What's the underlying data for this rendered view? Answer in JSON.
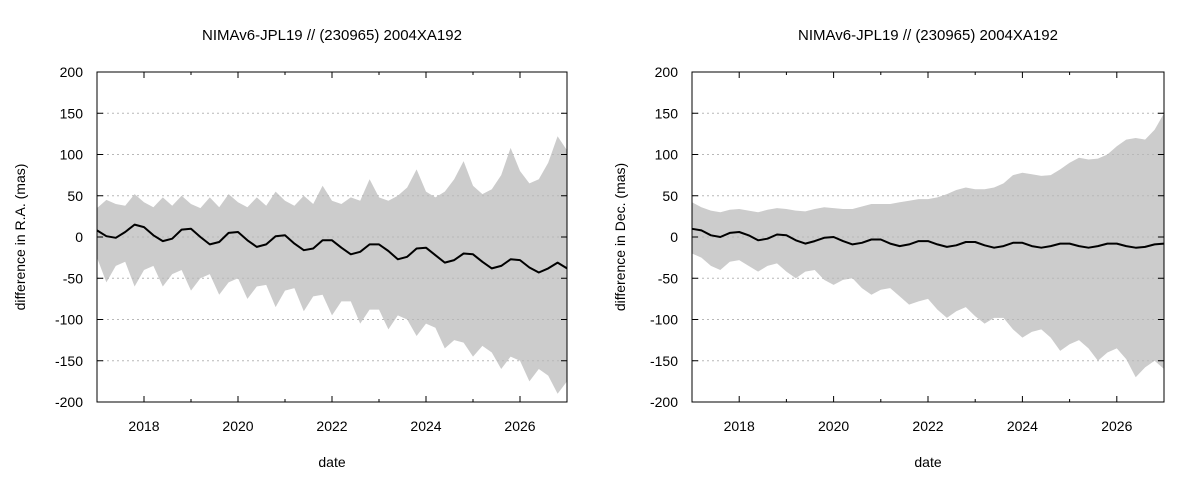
{
  "chart_data": [
    {
      "type": "line",
      "title": "NIMAv6-JPL19 // (230965) 2004XA192",
      "xlabel": "date",
      "ylabel": "difference in R.A. (mas)",
      "xlim": [
        2017.0,
        2027.0
      ],
      "ylim": [
        -200,
        200
      ],
      "xticks": [
        2018,
        2020,
        2022,
        2024,
        2026
      ],
      "yticks": [
        -200,
        -150,
        -100,
        -50,
        0,
        50,
        100,
        150,
        200
      ],
      "grid": "horizontal-dotted",
      "series": [
        {
          "name": "difference",
          "color": "#000000",
          "x": [
            2017.0,
            2017.2,
            2017.4,
            2017.6,
            2017.8,
            2018.0,
            2018.2,
            2018.4,
            2018.6,
            2018.8,
            2019.0,
            2019.2,
            2019.4,
            2019.6,
            2019.8,
            2020.0,
            2020.2,
            2020.4,
            2020.6,
            2020.8,
            2021.0,
            2021.2,
            2021.4,
            2021.6,
            2021.8,
            2022.0,
            2022.2,
            2022.4,
            2022.6,
            2022.8,
            2023.0,
            2023.2,
            2023.4,
            2023.6,
            2023.8,
            2024.0,
            2024.2,
            2024.4,
            2024.6,
            2024.8,
            2025.0,
            2025.2,
            2025.4,
            2025.6,
            2025.8,
            2026.0,
            2026.2,
            2026.4,
            2026.6,
            2026.8,
            2027.0
          ],
          "y": [
            8,
            1,
            -1,
            6,
            15,
            12,
            2,
            -5,
            -2,
            9,
            10,
            0,
            -9,
            -6,
            5,
            6,
            -4,
            -12,
            -9,
            1,
            2,
            -8,
            -16,
            -14,
            -4,
            -4,
            -13,
            -21,
            -18,
            -9,
            -9,
            -17,
            -27,
            -24,
            -14,
            -13,
            -22,
            -31,
            -28,
            -20,
            -21,
            -30,
            -38,
            -35,
            -27,
            -28,
            -37,
            -43,
            -38,
            -31,
            -38
          ]
        },
        {
          "name": "upper bound",
          "color": "#cccccc",
          "x": [
            2017.0,
            2017.2,
            2017.4,
            2017.6,
            2017.8,
            2018.0,
            2018.2,
            2018.4,
            2018.6,
            2018.8,
            2019.0,
            2019.2,
            2019.4,
            2019.6,
            2019.8,
            2020.0,
            2020.2,
            2020.4,
            2020.6,
            2020.8,
            2021.0,
            2021.2,
            2021.4,
            2021.6,
            2021.8,
            2022.0,
            2022.2,
            2022.4,
            2022.6,
            2022.8,
            2023.0,
            2023.2,
            2023.4,
            2023.6,
            2023.8,
            2024.0,
            2024.2,
            2024.4,
            2024.6,
            2024.8,
            2025.0,
            2025.2,
            2025.4,
            2025.6,
            2025.8,
            2026.0,
            2026.2,
            2026.4,
            2026.6,
            2026.8,
            2027.0
          ],
          "y": [
            35,
            45,
            40,
            38,
            52,
            42,
            36,
            48,
            38,
            50,
            40,
            35,
            48,
            36,
            52,
            42,
            36,
            48,
            38,
            55,
            44,
            38,
            50,
            40,
            62,
            44,
            40,
            48,
            44,
            70,
            48,
            44,
            50,
            60,
            82,
            55,
            48,
            55,
            70,
            92,
            62,
            52,
            58,
            75,
            108,
            80,
            65,
            70,
            90,
            122,
            105
          ]
        },
        {
          "name": "lower bound",
          "color": "#cccccc",
          "x": [
            2017.0,
            2017.2,
            2017.4,
            2017.6,
            2017.8,
            2018.0,
            2018.2,
            2018.4,
            2018.6,
            2018.8,
            2019.0,
            2019.2,
            2019.4,
            2019.6,
            2019.8,
            2020.0,
            2020.2,
            2020.4,
            2020.6,
            2020.8,
            2021.0,
            2021.2,
            2021.4,
            2021.6,
            2021.8,
            2022.0,
            2022.2,
            2022.4,
            2022.6,
            2022.8,
            2023.0,
            2023.2,
            2023.4,
            2023.6,
            2023.8,
            2024.0,
            2024.2,
            2024.4,
            2024.6,
            2024.8,
            2025.0,
            2025.2,
            2025.4,
            2025.6,
            2025.8,
            2026.0,
            2026.2,
            2026.4,
            2026.6,
            2026.8,
            2027.0
          ],
          "y": [
            -25,
            -55,
            -35,
            -30,
            -60,
            -40,
            -35,
            -60,
            -45,
            -40,
            -65,
            -50,
            -45,
            -70,
            -55,
            -50,
            -75,
            -60,
            -58,
            -85,
            -65,
            -62,
            -90,
            -72,
            -70,
            -95,
            -78,
            -78,
            -105,
            -88,
            -88,
            -112,
            -95,
            -100,
            -120,
            -105,
            -110,
            -135,
            -125,
            -128,
            -145,
            -132,
            -140,
            -160,
            -145,
            -150,
            -175,
            -160,
            -168,
            -190,
            -175
          ]
        }
      ]
    },
    {
      "type": "line",
      "title": "NIMAv6-JPL19 // (230965) 2004XA192",
      "xlabel": "date",
      "ylabel": "difference in Dec. (mas)",
      "xlim": [
        2017.0,
        2027.0
      ],
      "ylim": [
        -200,
        200
      ],
      "xticks": [
        2018,
        2020,
        2022,
        2024,
        2026
      ],
      "yticks": [
        -200,
        -150,
        -100,
        -50,
        0,
        50,
        100,
        150,
        200
      ],
      "grid": "horizontal-dotted",
      "series": [
        {
          "name": "difference",
          "color": "#000000",
          "x": [
            2017.0,
            2017.2,
            2017.4,
            2017.6,
            2017.8,
            2018.0,
            2018.2,
            2018.4,
            2018.6,
            2018.8,
            2019.0,
            2019.2,
            2019.4,
            2019.6,
            2019.8,
            2020.0,
            2020.2,
            2020.4,
            2020.6,
            2020.8,
            2021.0,
            2021.2,
            2021.4,
            2021.6,
            2021.8,
            2022.0,
            2022.2,
            2022.4,
            2022.6,
            2022.8,
            2023.0,
            2023.2,
            2023.4,
            2023.6,
            2023.8,
            2024.0,
            2024.2,
            2024.4,
            2024.6,
            2024.8,
            2025.0,
            2025.2,
            2025.4,
            2025.6,
            2025.8,
            2026.0,
            2026.2,
            2026.4,
            2026.6,
            2026.8,
            2027.0
          ],
          "y": [
            10,
            8,
            2,
            0,
            5,
            6,
            2,
            -4,
            -2,
            3,
            2,
            -4,
            -8,
            -5,
            -1,
            0,
            -5,
            -9,
            -7,
            -3,
            -3,
            -8,
            -11,
            -9,
            -5,
            -5,
            -9,
            -12,
            -10,
            -6,
            -6,
            -10,
            -13,
            -11,
            -7,
            -7,
            -11,
            -13,
            -11,
            -8,
            -8,
            -11,
            -13,
            -11,
            -8,
            -8,
            -11,
            -13,
            -12,
            -9,
            -8
          ]
        },
        {
          "name": "upper bound",
          "color": "#cccccc",
          "x": [
            2017.0,
            2017.2,
            2017.4,
            2017.6,
            2017.8,
            2018.0,
            2018.2,
            2018.4,
            2018.6,
            2018.8,
            2019.0,
            2019.2,
            2019.4,
            2019.6,
            2019.8,
            2020.0,
            2020.2,
            2020.4,
            2020.6,
            2020.8,
            2021.0,
            2021.2,
            2021.4,
            2021.6,
            2021.8,
            2022.0,
            2022.2,
            2022.4,
            2022.6,
            2022.8,
            2023.0,
            2023.2,
            2023.4,
            2023.6,
            2023.8,
            2024.0,
            2024.2,
            2024.4,
            2024.6,
            2024.8,
            2025.0,
            2025.2,
            2025.4,
            2025.6,
            2025.8,
            2026.0,
            2026.2,
            2026.4,
            2026.6,
            2026.8,
            2027.0
          ],
          "y": [
            42,
            36,
            32,
            30,
            33,
            34,
            32,
            30,
            33,
            35,
            34,
            32,
            31,
            34,
            36,
            35,
            34,
            34,
            37,
            40,
            40,
            40,
            42,
            44,
            46,
            46,
            48,
            52,
            57,
            60,
            58,
            58,
            60,
            65,
            75,
            78,
            76,
            74,
            75,
            82,
            90,
            96,
            94,
            95,
            100,
            110,
            118,
            120,
            118,
            130,
            150
          ]
        },
        {
          "name": "lower bound",
          "color": "#cccccc",
          "x": [
            2017.0,
            2017.2,
            2017.4,
            2017.6,
            2017.8,
            2018.0,
            2018.2,
            2018.4,
            2018.6,
            2018.8,
            2019.0,
            2019.2,
            2019.4,
            2019.6,
            2019.8,
            2020.0,
            2020.2,
            2020.4,
            2020.6,
            2020.8,
            2021.0,
            2021.2,
            2021.4,
            2021.6,
            2021.8,
            2022.0,
            2022.2,
            2022.4,
            2022.6,
            2022.8,
            2023.0,
            2023.2,
            2023.4,
            2023.6,
            2023.8,
            2024.0,
            2024.2,
            2024.4,
            2024.6,
            2024.8,
            2025.0,
            2025.2,
            2025.4,
            2025.6,
            2025.8,
            2026.0,
            2026.2,
            2026.4,
            2026.6,
            2026.8,
            2027.0
          ],
          "y": [
            -20,
            -25,
            -35,
            -40,
            -30,
            -28,
            -35,
            -42,
            -35,
            -32,
            -42,
            -50,
            -42,
            -40,
            -52,
            -58,
            -52,
            -50,
            -62,
            -70,
            -64,
            -62,
            -72,
            -82,
            -78,
            -75,
            -88,
            -98,
            -90,
            -85,
            -96,
            -105,
            -98,
            -98,
            -112,
            -122,
            -115,
            -112,
            -122,
            -138,
            -130,
            -125,
            -135,
            -150,
            -140,
            -135,
            -148,
            -170,
            -158,
            -150,
            -160
          ]
        }
      ]
    }
  ]
}
